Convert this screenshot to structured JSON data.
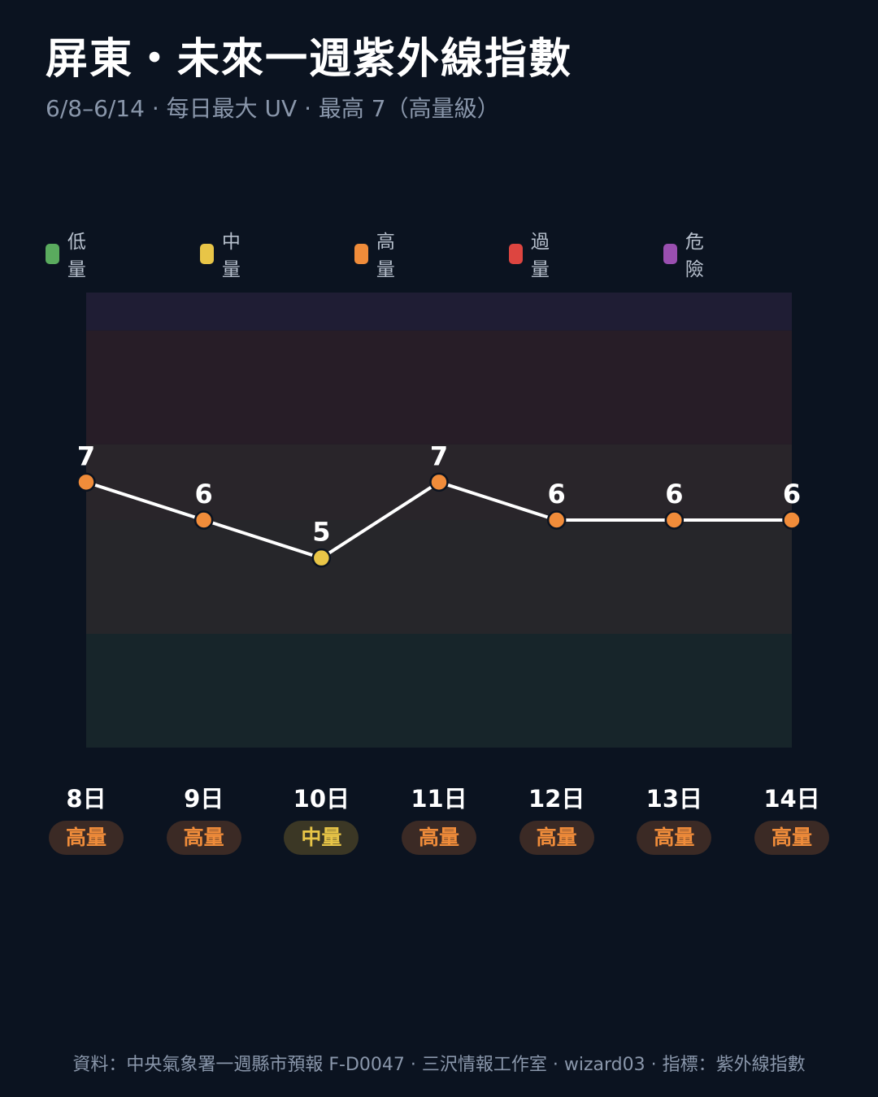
{
  "title": "屏東・未來一週紫外線指數",
  "subtitle": "6/8–6/14 · 每日最大 UV · 最高 7（高量級）",
  "legend": [
    {
      "label": "低量",
      "color": "#5aab5e"
    },
    {
      "label": "中量",
      "color": "#e8c547"
    },
    {
      "label": "高量",
      "color": "#f08c3a"
    },
    {
      "label": "過量",
      "color": "#dd4540"
    },
    {
      "label": "危險",
      "color": "#9a4fb0"
    }
  ],
  "chart_data": {
    "type": "line",
    "categories": [
      "8日",
      "9日",
      "10日",
      "11日",
      "12日",
      "13日",
      "14日"
    ],
    "values": [
      7,
      6,
      5,
      7,
      6,
      6,
      6
    ],
    "levels": [
      "高量",
      "高量",
      "中量",
      "高量",
      "高量",
      "高量",
      "高量"
    ],
    "ylim": [
      0,
      12
    ],
    "bands": [
      {
        "level": "低量",
        "from": 0,
        "to": 3,
        "color": "#17252a"
      },
      {
        "level": "中量",
        "from": 3,
        "to": 6,
        "color": "#26262a"
      },
      {
        "level": "高量",
        "from": 6,
        "to": 8,
        "color": "#29252a"
      },
      {
        "level": "過量",
        "from": 8,
        "to": 11,
        "color": "#271d27"
      },
      {
        "level": "危險",
        "from": 11,
        "to": 12,
        "color": "#1f1d34"
      }
    ],
    "level_colors": {
      "低量": {
        "fg": "#5aab5e",
        "bg": "#1d3a29"
      },
      "中量": {
        "fg": "#e8c547",
        "bg": "#3b3725"
      },
      "高量": {
        "fg": "#f08c3a",
        "bg": "#3b2a25"
      },
      "過量": {
        "fg": "#dd4540",
        "bg": "#3b2225"
      },
      "危險": {
        "fg": "#9a4fb0",
        "bg": "#2f2340"
      }
    },
    "line_color": "#ffffff",
    "grid": false
  },
  "footer": "資料：中央氣象署一週縣市預報 F-D0047 · 三沢情報工作室 · wizard03 · 指標：紫外線指數"
}
